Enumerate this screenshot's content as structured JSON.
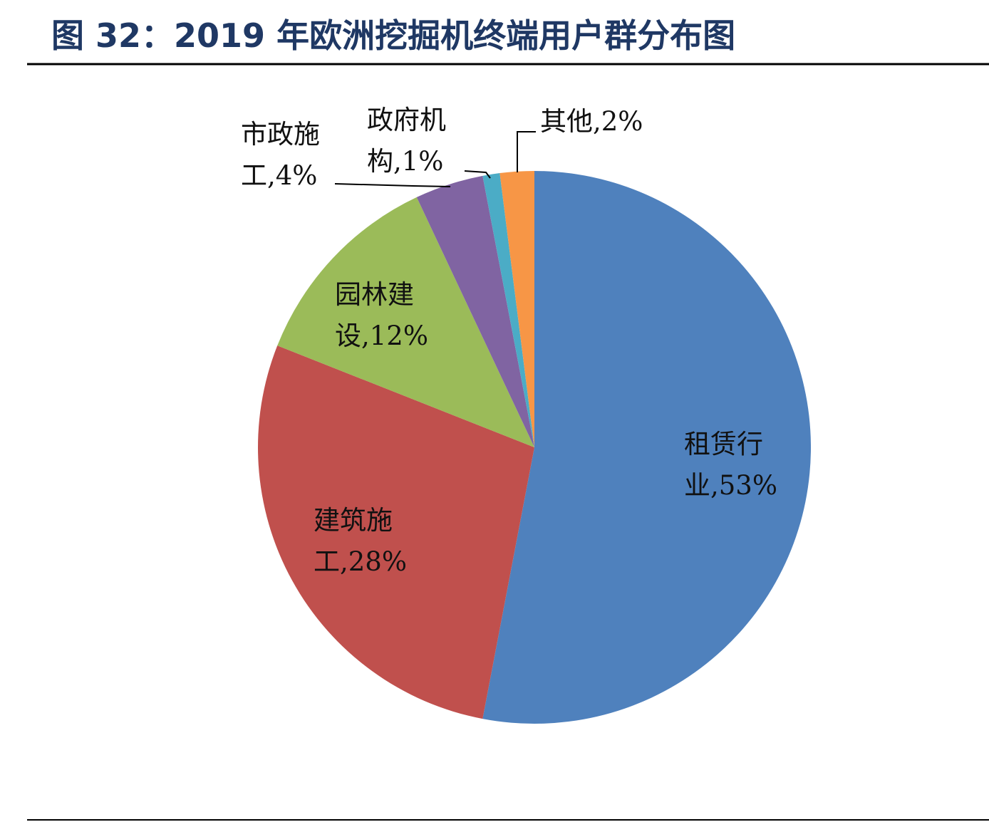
{
  "title": "图 32：2019 年欧洲挖掘机终端用户群分布图",
  "chart_data": {
    "type": "pie",
    "values": [
      53,
      28,
      12,
      4,
      1,
      2
    ],
    "value_labels": [
      "租赁行业,53%",
      "建筑施工,28%",
      "园林建设,12%",
      "市政施工,4%",
      "政府机构,1%",
      "其他,2%"
    ],
    "colors": [
      "#4f81bd",
      "#c0504d",
      "#9bbb59",
      "#8064a2",
      "#4bacc6",
      "#f79646"
    ]
  }
}
